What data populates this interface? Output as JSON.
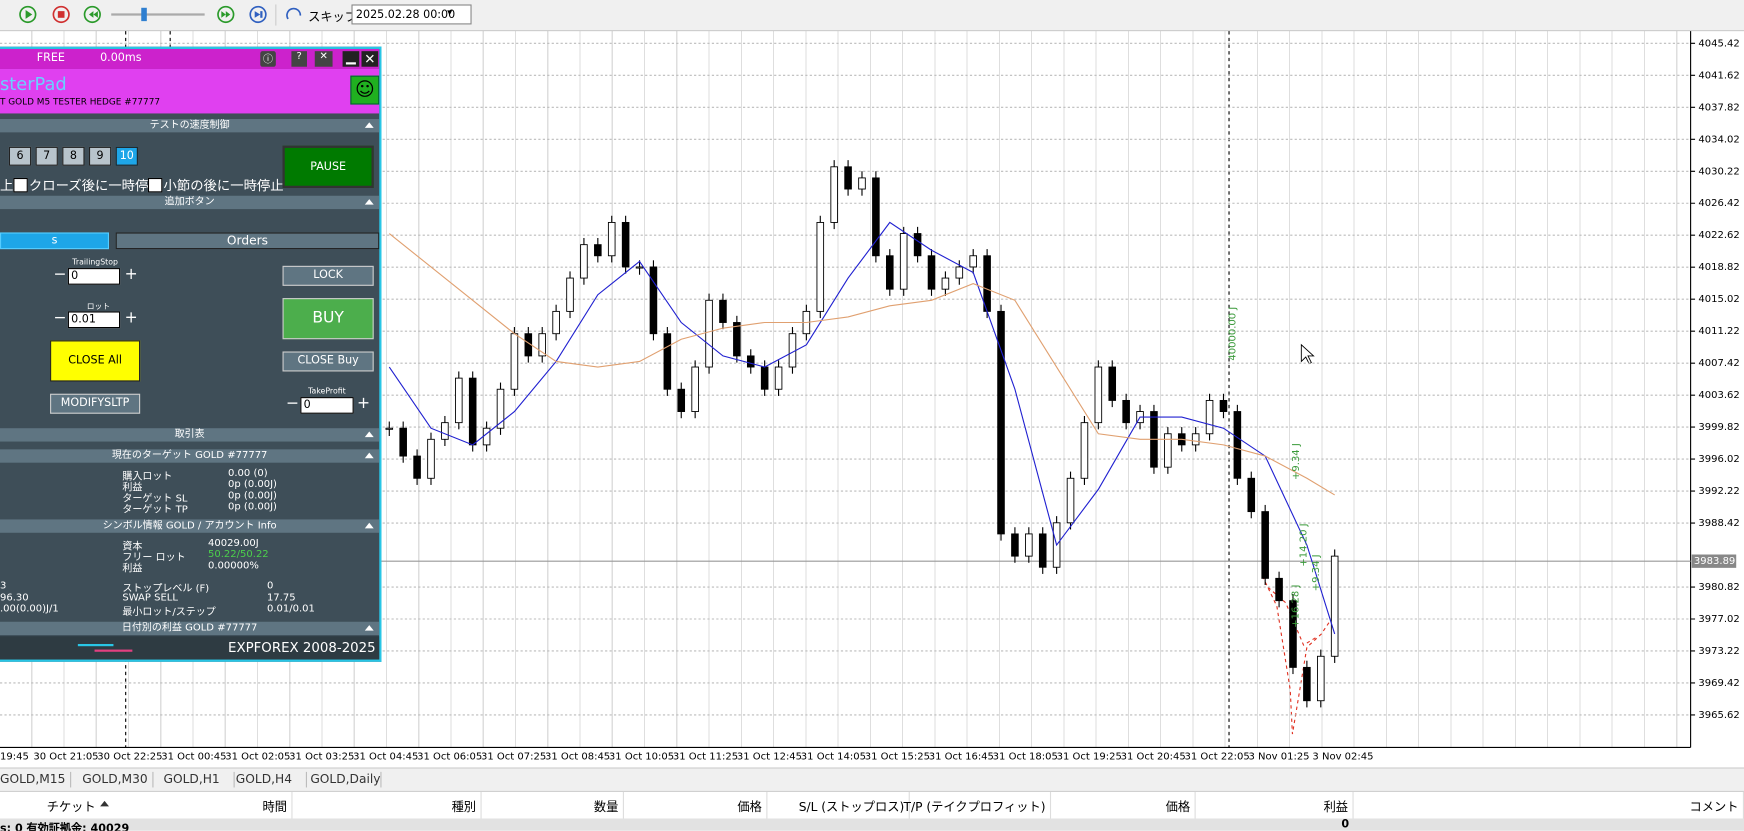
{
  "toolbar": {
    "skip_label": "スキップ",
    "date": "2025.02.28 00:00"
  },
  "chart": {
    "type": "candlestick",
    "closes": [
      3999.69,
      3996.38,
      3993.74,
      3998.37,
      4000.35,
      4005.64,
      3997.71,
      3999.69,
      4004.32,
      4010.92,
      4008.28,
      4010.92,
      4013.57,
      4017.53,
      4021.5,
      4020.18,
      4024.14,
      4018.85,
      4018.85,
      4010.92,
      4004.32,
      4001.67,
      4006.96,
      4014.89,
      4012.25,
      4008.28,
      4006.96,
      4004.32,
      4006.96,
      4010.92,
      4013.57,
      4024.14,
      4030.75,
      4028.11,
      4029.43,
      4020.18,
      4016.21,
      4022.82,
      4020.18,
      4016.21,
      4017.53,
      4018.85,
      4020.18,
      4013.57,
      3987.13,
      3984.49,
      3987.13,
      3983.17,
      3988.45,
      3993.74,
      4000.35,
      4006.96,
      4002.99,
      4000.35,
      4001.67,
      3995.06,
      3999.03,
      3997.71,
      3999.03,
      4002.99,
      4001.67,
      3993.74,
      3989.78,
      3981.85,
      3979.2,
      3971.27,
      3967.31,
      3972.59,
      3984.49
    ],
    "ylim": [
      3961.76,
      4046.87
    ],
    "yticks": [
      4045.42,
      4041.62,
      4037.82,
      4034.02,
      4030.22,
      4026.42,
      4022.62,
      4018.82,
      4015.02,
      4011.22,
      4007.42,
      4003.62,
      3999.82,
      3996.02,
      3992.22,
      3988.42,
      3980.82,
      3977.02,
      3973.22,
      3969.42,
      3965.62
    ],
    "current_price": 3983.89,
    "ma_fast": {
      "color": "#2020d0",
      "x": [
        0,
        3,
        6,
        9,
        12,
        15,
        18,
        21,
        24,
        27,
        30,
        33,
        36,
        39,
        42,
        45,
        48,
        51,
        54,
        57,
        60,
        63,
        66,
        68
      ],
      "values": [
        4006.96,
        3999.69,
        3997.71,
        4001.67,
        4007.62,
        4015.55,
        4019.51,
        4012.25,
        4008.28,
        4006.96,
        4009.6,
        4017.53,
        4024.14,
        4020.84,
        4018.19,
        4004.32,
        3985.81,
        3992.42,
        4001.01,
        4001.01,
        3999.69,
        3996.38,
        3985.81,
        3975.24
      ]
    },
    "ma_slow": {
      "color": "#e0a070",
      "x": [
        0,
        3,
        6,
        9,
        12,
        15,
        18,
        21,
        24,
        27,
        30,
        33,
        36,
        39,
        42,
        45,
        48,
        51,
        54,
        57,
        60,
        63,
        66,
        68
      ],
      "values": [
        4022.82,
        4018.85,
        4014.89,
        4010.92,
        4007.62,
        4006.96,
        4007.62,
        4010.26,
        4011.58,
        4012.25,
        4012.25,
        4012.91,
        4014.23,
        4014.89,
        4016.87,
        4014.89,
        4006.96,
        3999.03,
        3998.37,
        3998.37,
        3997.71,
        3996.38,
        3993.74,
        3991.76
      ]
    },
    "time_labels": [
      "19:45",
      "30 Oct 21:05",
      "30 Oct 22:25",
      "31 Oct 00:45",
      "31 Oct 02:05",
      "31 Oct 03:25",
      "31 Oct 04:45",
      "31 Oct 06:05",
      "31 Oct 07:25",
      "31 Oct 08:45",
      "31 Oct 10:05",
      "31 Oct 11:25",
      "31 Oct 12:45",
      "31 Oct 14:05",
      "31 Oct 15:25",
      "31 Oct 16:45",
      "31 Oct 18:05",
      "31 Oct 19:25",
      "31 Oct 20:45",
      "31 Oct 22:05",
      "3 Nov 01:25",
      "3 Nov 02:45"
    ],
    "annotations": [
      "40000.00 J",
      "+9.34 J",
      "+16.28 J",
      "+14.20 J",
      "+9.34 J"
    ]
  },
  "panel": {
    "status": "FREE",
    "latency": "0.00ms",
    "title": "sterPad",
    "subtitle": "T GOLD M5 TESTER HEDGE  #77777",
    "sections": [
      "テストの速度制御",
      "追加ボタン",
      "取引表",
      "現在のターゲット GOLD #77777",
      "シンボル情報 GOLD / アカウント Info",
      "日付別の利益 GOLD #77777"
    ],
    "speed_buttons": [
      6,
      7,
      8,
      9,
      10
    ],
    "pause": "PAUSE",
    "checks": [
      "上",
      "クローズ後に一時停止",
      "小節の後に一時停止"
    ],
    "tabs": [
      "s",
      "Orders"
    ],
    "trailing_label": "TrailingStop",
    "trailing_value": "0",
    "lock": "LOCK",
    "lot_label": "ロット",
    "lot_value": "0.01",
    "buy": "BUY",
    "close_all": "CLOSE All",
    "close_buy": "CLOSE Buy",
    "modify": "MODIFYSLTP",
    "tp_label": "TakeProfit",
    "tp_value": "0",
    "target_rows": [
      [
        "購入ロット",
        "0.00 (0)"
      ],
      [
        "利益",
        "0p (0.00J)"
      ],
      [
        "ターゲット SL",
        "0p (0.00J)"
      ],
      [
        "ターゲット TP",
        "0p (0.00J)"
      ]
    ],
    "info_rows": [
      [
        "資本",
        "40029.00J"
      ],
      [
        "フリー ロット",
        "50.22/50.22"
      ],
      [
        "利益",
        "0.00000%"
      ],
      [
        "ストップレベル (F)",
        "0"
      ],
      [
        "SWAP SELL",
        "17.75"
      ],
      [
        "最小ロット/ステップ",
        "0.01/0.01"
      ]
    ],
    "info_left": [
      "3",
      "96.30",
      ".00(0.00)J/1"
    ],
    "footer": "EXPFOREX 2008-2025"
  },
  "tabs": [
    "GOLD,M15",
    "GOLD,M30",
    "GOLD,H1",
    "GOLD,H4",
    "GOLD,Daily"
  ],
  "table": {
    "columns": [
      "チケット",
      "時間",
      "種別",
      "数量",
      "価格",
      "S/L (ストップロス)",
      "T/P (テイクプロフィット)",
      "価格",
      "利益",
      "コメント"
    ],
    "summary": "s: 0  有効証拠金: 40029",
    "profit_total": 0
  }
}
